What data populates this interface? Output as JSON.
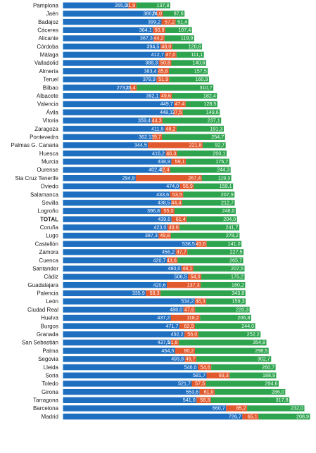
{
  "chart_data": {
    "type": "bar",
    "stacked": true,
    "orientation": "horizontal",
    "colors": [
      "#1f6fc0",
      "#e15a2e",
      "#2ea44f"
    ],
    "highlight_category": "TOTAL",
    "categories": [
      "Pamplona",
      "Jaén",
      "Badajoz",
      "Cáceres",
      "Alicante",
      "Córdoba",
      "Málaga",
      "Valladolid",
      "Almería",
      "Teruel",
      "Bilbao",
      "Albacete",
      "Valencia",
      "Ávila",
      "Vitoria",
      "Zaragoza",
      "Pontevedra",
      "Palmas  G. Canaria",
      "Huesca",
      "Murcia",
      "Ourense",
      "Sta Cruz Tenerife",
      "Oviedo",
      "Salamanca",
      "Sevilla",
      "Logroño",
      "TOTAL",
      "Coruña",
      "Lugo",
      "Castellón",
      "Zamora",
      "Cuenca",
      "Santander",
      "Cádiz",
      "Guadalajara",
      "Palencia",
      "León",
      "Ciudad Real",
      "Huelva",
      "Burgos",
      "Granada",
      "San Sebastián",
      "Palma",
      "Segovia",
      "Lleida",
      "Soria",
      "Toledo",
      "Girona",
      "Tarragona",
      "Barcelona",
      "Madrid"
    ],
    "series": [
      {
        "values": [
          265.0,
          380.8,
          399.2,
          364.1,
          367.3,
          394.5,
          412.7,
          388.3,
          383.4,
          378.9,
          273.1,
          392.1,
          449.7,
          448.1,
          359.4,
          411.9,
          362.1,
          344.5,
          416.2,
          438.9,
          402.4,
          294.9,
          474.0,
          433.6,
          438.5,
          396.8,
          439.6,
          423.0,
          387.3,
          538.5,
          456.2,
          420.7,
          480.0,
          506.5,
          420.6,
          335.9,
          534.2,
          488.0,
          437.2,
          471.7,
          492.2,
          437.5,
          454.5,
          493.8,
          546.0,
          581.7,
          521.7,
          553.6,
          541.0,
          660.7,
          726.7
        ]
      },
      {
        "values": [
          31.9,
          24.0,
          57.2,
          50.9,
          44.2,
          48.0,
          47.0,
          50.8,
          45.8,
          51.9,
          25.4,
          49.6,
          47.4,
          37.5,
          44.3,
          48.2,
          39.7,
          221.8,
          46.3,
          59.1,
          32.4,
          267.4,
          55.9,
          53.5,
          44.4,
          55.0,
          61.4,
          49.6,
          49.8,
          43.6,
          47.7,
          43.6,
          48.1,
          54.0,
          137.3,
          59.3,
          46.3,
          47.6,
          118.2,
          62.9,
          56.0,
          31.8,
          80.2,
          46.7,
          54.6,
          93.3,
          57.5,
          61.0,
          58.3,
          85.2,
          65.1
        ]
      },
      {
        "values": [
          137.8,
          87.6,
          51.4,
          107.4,
          119.9,
          120.8,
          111.1,
          140.6,
          157.5,
          160.9,
          310.7,
          182.4,
          128.5,
          149.6,
          237.1,
          191.3,
          254.7,
          92.7,
          200.1,
          175.7,
          244.3,
          119.3,
          159.1,
          207.9,
          212.7,
          248.0,
          204.0,
          241.7,
          278.2,
          141.0,
          227.5,
          265.7,
          207.5,
          175.2,
          180.2,
          343.8,
          159.3,
          220.3,
          206.8,
          244.0,
          252.2,
          354.8,
          298.5,
          302.7,
          260.7,
          188.9,
          294.6,
          286.0,
          317.8,
          232.0,
          208.9
        ]
      }
    ],
    "labels": [
      [
        "265,0",
        "31,9",
        "137,8"
      ],
      [
        "380,8",
        "24,0",
        "87,6"
      ],
      [
        "399,2",
        "57,2",
        "51,4"
      ],
      [
        "364,1",
        "50,9",
        "107,4"
      ],
      [
        "367,3",
        "44,2",
        "119,9"
      ],
      [
        "394,5",
        "48,0",
        "120,8"
      ],
      [
        "412,7",
        "47,0",
        "111,1"
      ],
      [
        "388,3",
        "50,8",
        "140,6"
      ],
      [
        "383,4",
        "45,8",
        "157,5"
      ],
      [
        "378,9",
        "51,9",
        "160,9"
      ],
      [
        "273,1",
        "25,4",
        "310,7"
      ],
      [
        "392,1",
        "49,6",
        "182,4"
      ],
      [
        "449,7",
        "47,4",
        "128,5"
      ],
      [
        "448,1",
        "37,5",
        "149,6"
      ],
      [
        "359,4",
        "44,3",
        "237,1"
      ],
      [
        "411,9",
        "48,2",
        "191,3"
      ],
      [
        "362,1",
        "39,7",
        "254,7"
      ],
      [
        "344,5",
        "221,8",
        "92,7"
      ],
      [
        "416,2",
        "46,3",
        "200,1"
      ],
      [
        "438,9",
        "59,1",
        "175,7"
      ],
      [
        "402,4",
        "32,4",
        "244,3"
      ],
      [
        "294,9",
        "267,4",
        "119,3"
      ],
      [
        "474,0",
        "55,9",
        "159,1"
      ],
      [
        "433,6",
        "53,5",
        "207,9"
      ],
      [
        "438,5",
        "44,4",
        "212,7"
      ],
      [
        "396,8",
        "55,0",
        "248,0"
      ],
      [
        "439,6",
        "61,4",
        "204,0"
      ],
      [
        "423,0",
        "49,6",
        "241,7"
      ],
      [
        "387,3",
        "49,8",
        "278,2"
      ],
      [
        "538,5",
        "43,6",
        "141,0"
      ],
      [
        "456,2",
        "47,7",
        "227,5"
      ],
      [
        "420,7",
        "43,6",
        "265,7"
      ],
      [
        "480,0",
        "48,1",
        "207,5"
      ],
      [
        "506,5",
        "54,0",
        "175,2"
      ],
      [
        "420,6",
        "137,3",
        "180,2"
      ],
      [
        "335,9",
        "59,3",
        "343,8"
      ],
      [
        "534,2",
        "46,3",
        "159,3"
      ],
      [
        "488,0",
        "47,6",
        "220,3"
      ],
      [
        "437,2",
        "118,2",
        "206,8"
      ],
      [
        "471,7",
        "62,9",
        "244,0"
      ],
      [
        "492,2",
        "56,0",
        "252,2"
      ],
      [
        "437,5",
        "31,8",
        "354,8"
      ],
      [
        "454,5",
        "80,2",
        "298,5"
      ],
      [
        "493,8",
        "46,7",
        "302,7"
      ],
      [
        "546,0",
        "54,6",
        "260,7"
      ],
      [
        "581,7",
        "93,3",
        "188,9"
      ],
      [
        "521,7",
        "57,5",
        "294,6"
      ],
      [
        "553,6",
        "61,0",
        "286,0"
      ],
      [
        "541,0",
        "58,3",
        "317,8"
      ],
      [
        "660,7",
        "85,2",
        "232,0"
      ],
      [
        "726,7",
        "65,1",
        "208,9"
      ]
    ]
  }
}
